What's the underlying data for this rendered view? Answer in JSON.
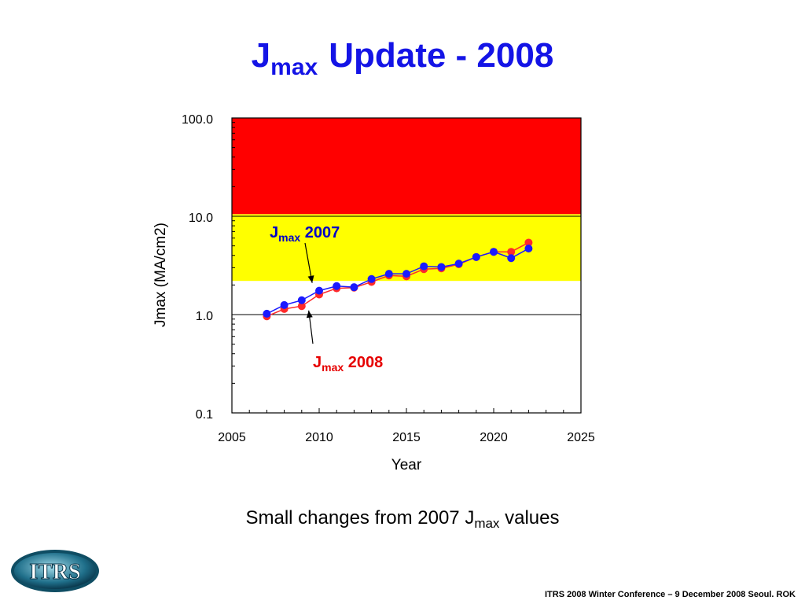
{
  "slide": {
    "title_main": "J",
    "title_sub": "max",
    "title_rest": "Update - 2008",
    "caption_pre": "Small changes from 2007 J",
    "caption_sub": "max",
    "caption_post": " values",
    "footer": "ITRS 2008 Winter Conference – 9 December 2008 Seoul. ROK",
    "logo_text": "ITRS"
  },
  "colors": {
    "title": "#1414e6",
    "red_zone": "#ff0000",
    "yellow_zone": "#ffff00",
    "series_2007": "#1a1aff",
    "series_2008": "#ff2a2a",
    "annotation_2007": "#0000c8",
    "annotation_2008": "#e60000"
  },
  "chart_data": {
    "type": "line",
    "y_scale": "log",
    "xlim": [
      2005,
      2025
    ],
    "ylim": [
      0.1,
      100
    ],
    "x_ticks": [
      2005,
      2010,
      2015,
      2020,
      2025
    ],
    "y_ticks": [
      0.1,
      1.0,
      10.0,
      100.0
    ],
    "y_tick_labels": [
      "0.1",
      "1.0",
      "10.0",
      "100.0"
    ],
    "xlabel": "Year",
    "ylabel": "Jmax (MA/cm2)",
    "zones": [
      {
        "name": "red",
        "y_from": 10.5,
        "y_to": 100
      },
      {
        "name": "yellow",
        "y_from": 2.2,
        "y_to": 10.5
      }
    ],
    "series": [
      {
        "name": "2007",
        "x": [
          2007,
          2008,
          2009,
          2010,
          2011,
          2012,
          2013,
          2014,
          2015,
          2016,
          2017,
          2018,
          2019,
          2020,
          2021,
          2022
        ],
        "values": [
          1.02,
          1.25,
          1.4,
          1.75,
          1.95,
          1.9,
          2.3,
          2.6,
          2.6,
          3.1,
          3.05,
          3.3,
          3.85,
          4.35,
          3.75,
          4.7
        ]
      },
      {
        "name": "2008",
        "x": [
          2007,
          2008,
          2009,
          2010,
          2011,
          2012,
          2013,
          2014,
          2015,
          2016,
          2017,
          2018,
          2019,
          2020,
          2021,
          2022
        ],
        "values": [
          0.96,
          1.14,
          1.22,
          1.6,
          1.85,
          1.88,
          2.15,
          2.5,
          2.45,
          2.9,
          2.95,
          3.25,
          3.85,
          4.35,
          4.35,
          5.4
        ]
      }
    ],
    "annotations": [
      {
        "label_main": "J",
        "label_sub": "max",
        "label_rest": " 2007",
        "series": "2007",
        "target_x": 2009.6,
        "target_y": 2.1
      },
      {
        "label_main": "J",
        "label_sub": "max",
        "label_rest": " 2008",
        "series": "2008",
        "target_x": 2009.4,
        "target_y": 1.1
      }
    ]
  }
}
